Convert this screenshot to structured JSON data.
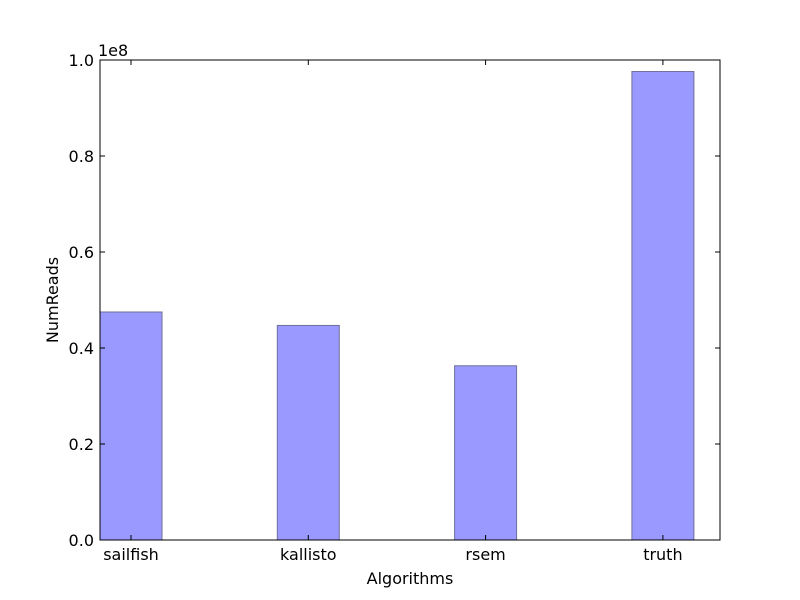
{
  "chart_data": {
    "type": "bar",
    "categories": [
      "sailfish",
      "kallisto",
      "rsem",
      "truth"
    ],
    "values": [
      47500000,
      44700000,
      36300000,
      97600000
    ],
    "xlabel": "Algorithms",
    "ylabel": "NumReads",
    "ylim": [
      0,
      100000000
    ],
    "scale_label": "1e8",
    "yticks": [
      0,
      0.2,
      0.4,
      0.6,
      0.8,
      1.0
    ],
    "ytick_labels": [
      "0.0",
      "0.2",
      "0.4",
      "0.6",
      "0.8",
      "1.0"
    ],
    "grid": false,
    "legend": "none",
    "bar_color": "#9999ff",
    "bar_edge_color": "#6f6f9a"
  }
}
